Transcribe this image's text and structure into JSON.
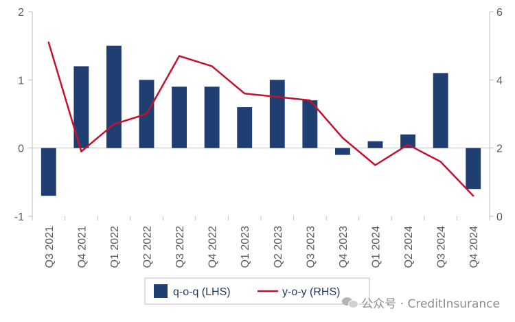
{
  "chart_data": {
    "type": "bar",
    "categories": [
      "Q3 2021",
      "Q4 2021",
      "Q1 2022",
      "Q2 2022",
      "Q3 2022",
      "Q4 2022",
      "Q1 2023",
      "Q2 2023",
      "Q3 2023",
      "Q4 2023",
      "Q1 2024",
      "Q2 2024",
      "Q3 2024",
      "Q4 2024"
    ],
    "series": [
      {
        "name": "q-o-q (LHS)",
        "type": "bar",
        "axis": "left",
        "color": "#1f3f73",
        "values": [
          -0.7,
          1.2,
          1.5,
          1.0,
          0.9,
          0.9,
          0.6,
          1.0,
          0.7,
          -0.1,
          0.1,
          0.2,
          1.1,
          -0.6
        ]
      },
      {
        "name": "y-o-y (RHS)",
        "type": "line",
        "axis": "right",
        "color": "#c8102e",
        "values": [
          5.1,
          1.9,
          2.7,
          3.0,
          4.7,
          4.4,
          3.6,
          3.5,
          3.4,
          2.3,
          1.5,
          2.1,
          1.6,
          0.6
        ]
      }
    ],
    "y_left": {
      "min": -1,
      "max": 2,
      "ticks": [
        -1,
        0,
        1,
        2
      ]
    },
    "y_right": {
      "min": 0,
      "max": 6,
      "ticks": [
        0,
        2,
        4,
        6
      ]
    },
    "grid": false,
    "legend_position": "bottom-center",
    "title": "",
    "xlabel": "",
    "ylabel": ""
  },
  "watermark": {
    "text": "公众号 · CreditInsurance",
    "icon": "wechat-icon"
  }
}
